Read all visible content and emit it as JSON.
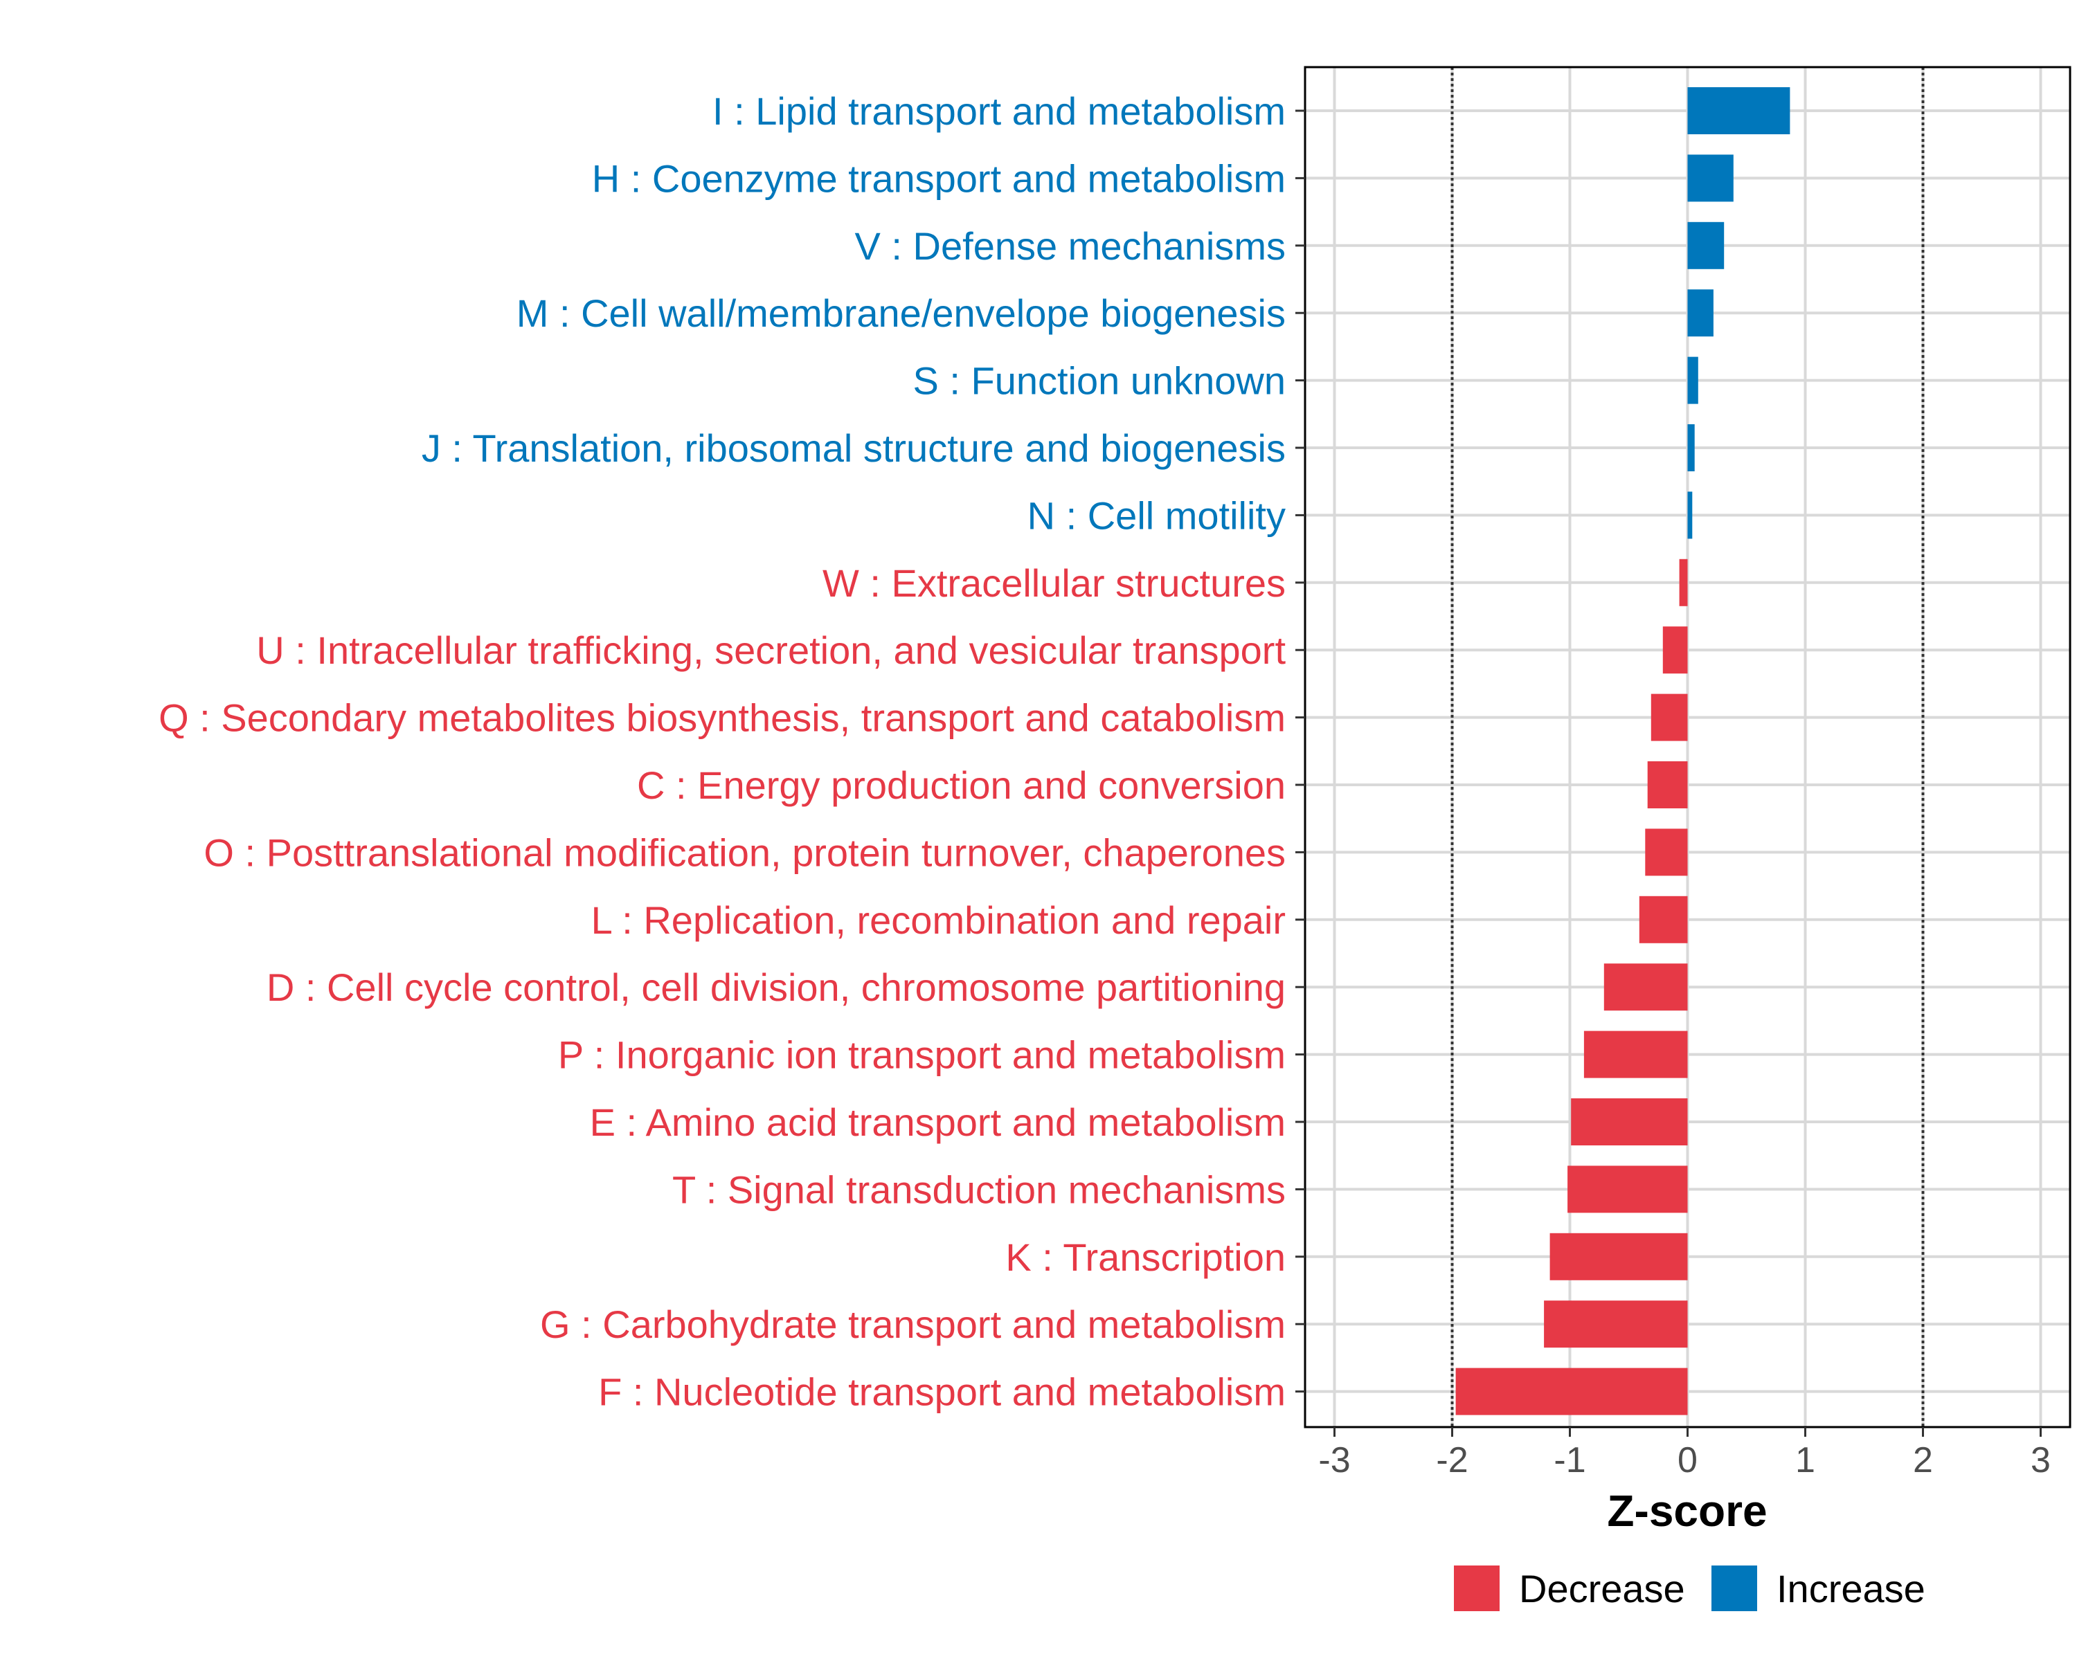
{
  "chart_data": {
    "type": "bar",
    "orientation": "horizontal",
    "title": "",
    "xlabel": "Z-score",
    "ylabel": "",
    "xlim": [
      -3.25,
      3.25
    ],
    "xticks": [
      -3,
      -2,
      -1,
      0,
      1,
      2,
      3
    ],
    "xtick_labels": [
      "-3",
      "-2",
      "-1",
      "0",
      "1",
      "2",
      "3"
    ],
    "reference_lines": [
      -2,
      2
    ],
    "grid": true,
    "categories": [
      "I : Lipid transport and metabolism",
      "H : Coenzyme transport and metabolism",
      "V : Defense mechanisms",
      "M : Cell wall/membrane/envelope biogenesis",
      "S : Function unknown",
      "J : Translation, ribosomal structure and biogenesis",
      "N : Cell motility",
      "W : Extracellular structures",
      "U : Intracellular trafficking, secretion, and vesicular transport",
      "Q : Secondary metabolites biosynthesis, transport and catabolism",
      "C : Energy production and conversion",
      "O : Posttranslational modification, protein turnover, chaperones",
      "L : Replication, recombination and repair",
      "D : Cell cycle control, cell division, chromosome partitioning",
      "P : Inorganic ion transport and metabolism",
      "E : Amino acid transport and metabolism",
      "T : Signal transduction mechanisms",
      "K : Transcription",
      "G : Carbohydrate transport and metabolism",
      "F : Nucleotide transport and metabolism"
    ],
    "values": [
      0.87,
      0.39,
      0.31,
      0.22,
      0.09,
      0.06,
      0.04,
      -0.07,
      -0.21,
      -0.31,
      -0.34,
      -0.36,
      -0.41,
      -0.71,
      -0.88,
      -0.99,
      -1.02,
      -1.17,
      -1.22,
      -1.97
    ],
    "groups": [
      "Increase",
      "Increase",
      "Increase",
      "Increase",
      "Increase",
      "Increase",
      "Increase",
      "Decrease",
      "Decrease",
      "Decrease",
      "Decrease",
      "Decrease",
      "Decrease",
      "Decrease",
      "Decrease",
      "Decrease",
      "Decrease",
      "Decrease",
      "Decrease",
      "Decrease"
    ],
    "legend": {
      "position": "bottom",
      "entries": [
        {
          "label": "Decrease",
          "color": "#e63946"
        },
        {
          "label": "Increase",
          "color": "#0077bb"
        }
      ]
    },
    "colors": {
      "Decrease": "#e63946",
      "Increase": "#0077bb",
      "grid": "#d9d9d9",
      "reference_line": "#333333",
      "panel_border": "#000000"
    }
  }
}
